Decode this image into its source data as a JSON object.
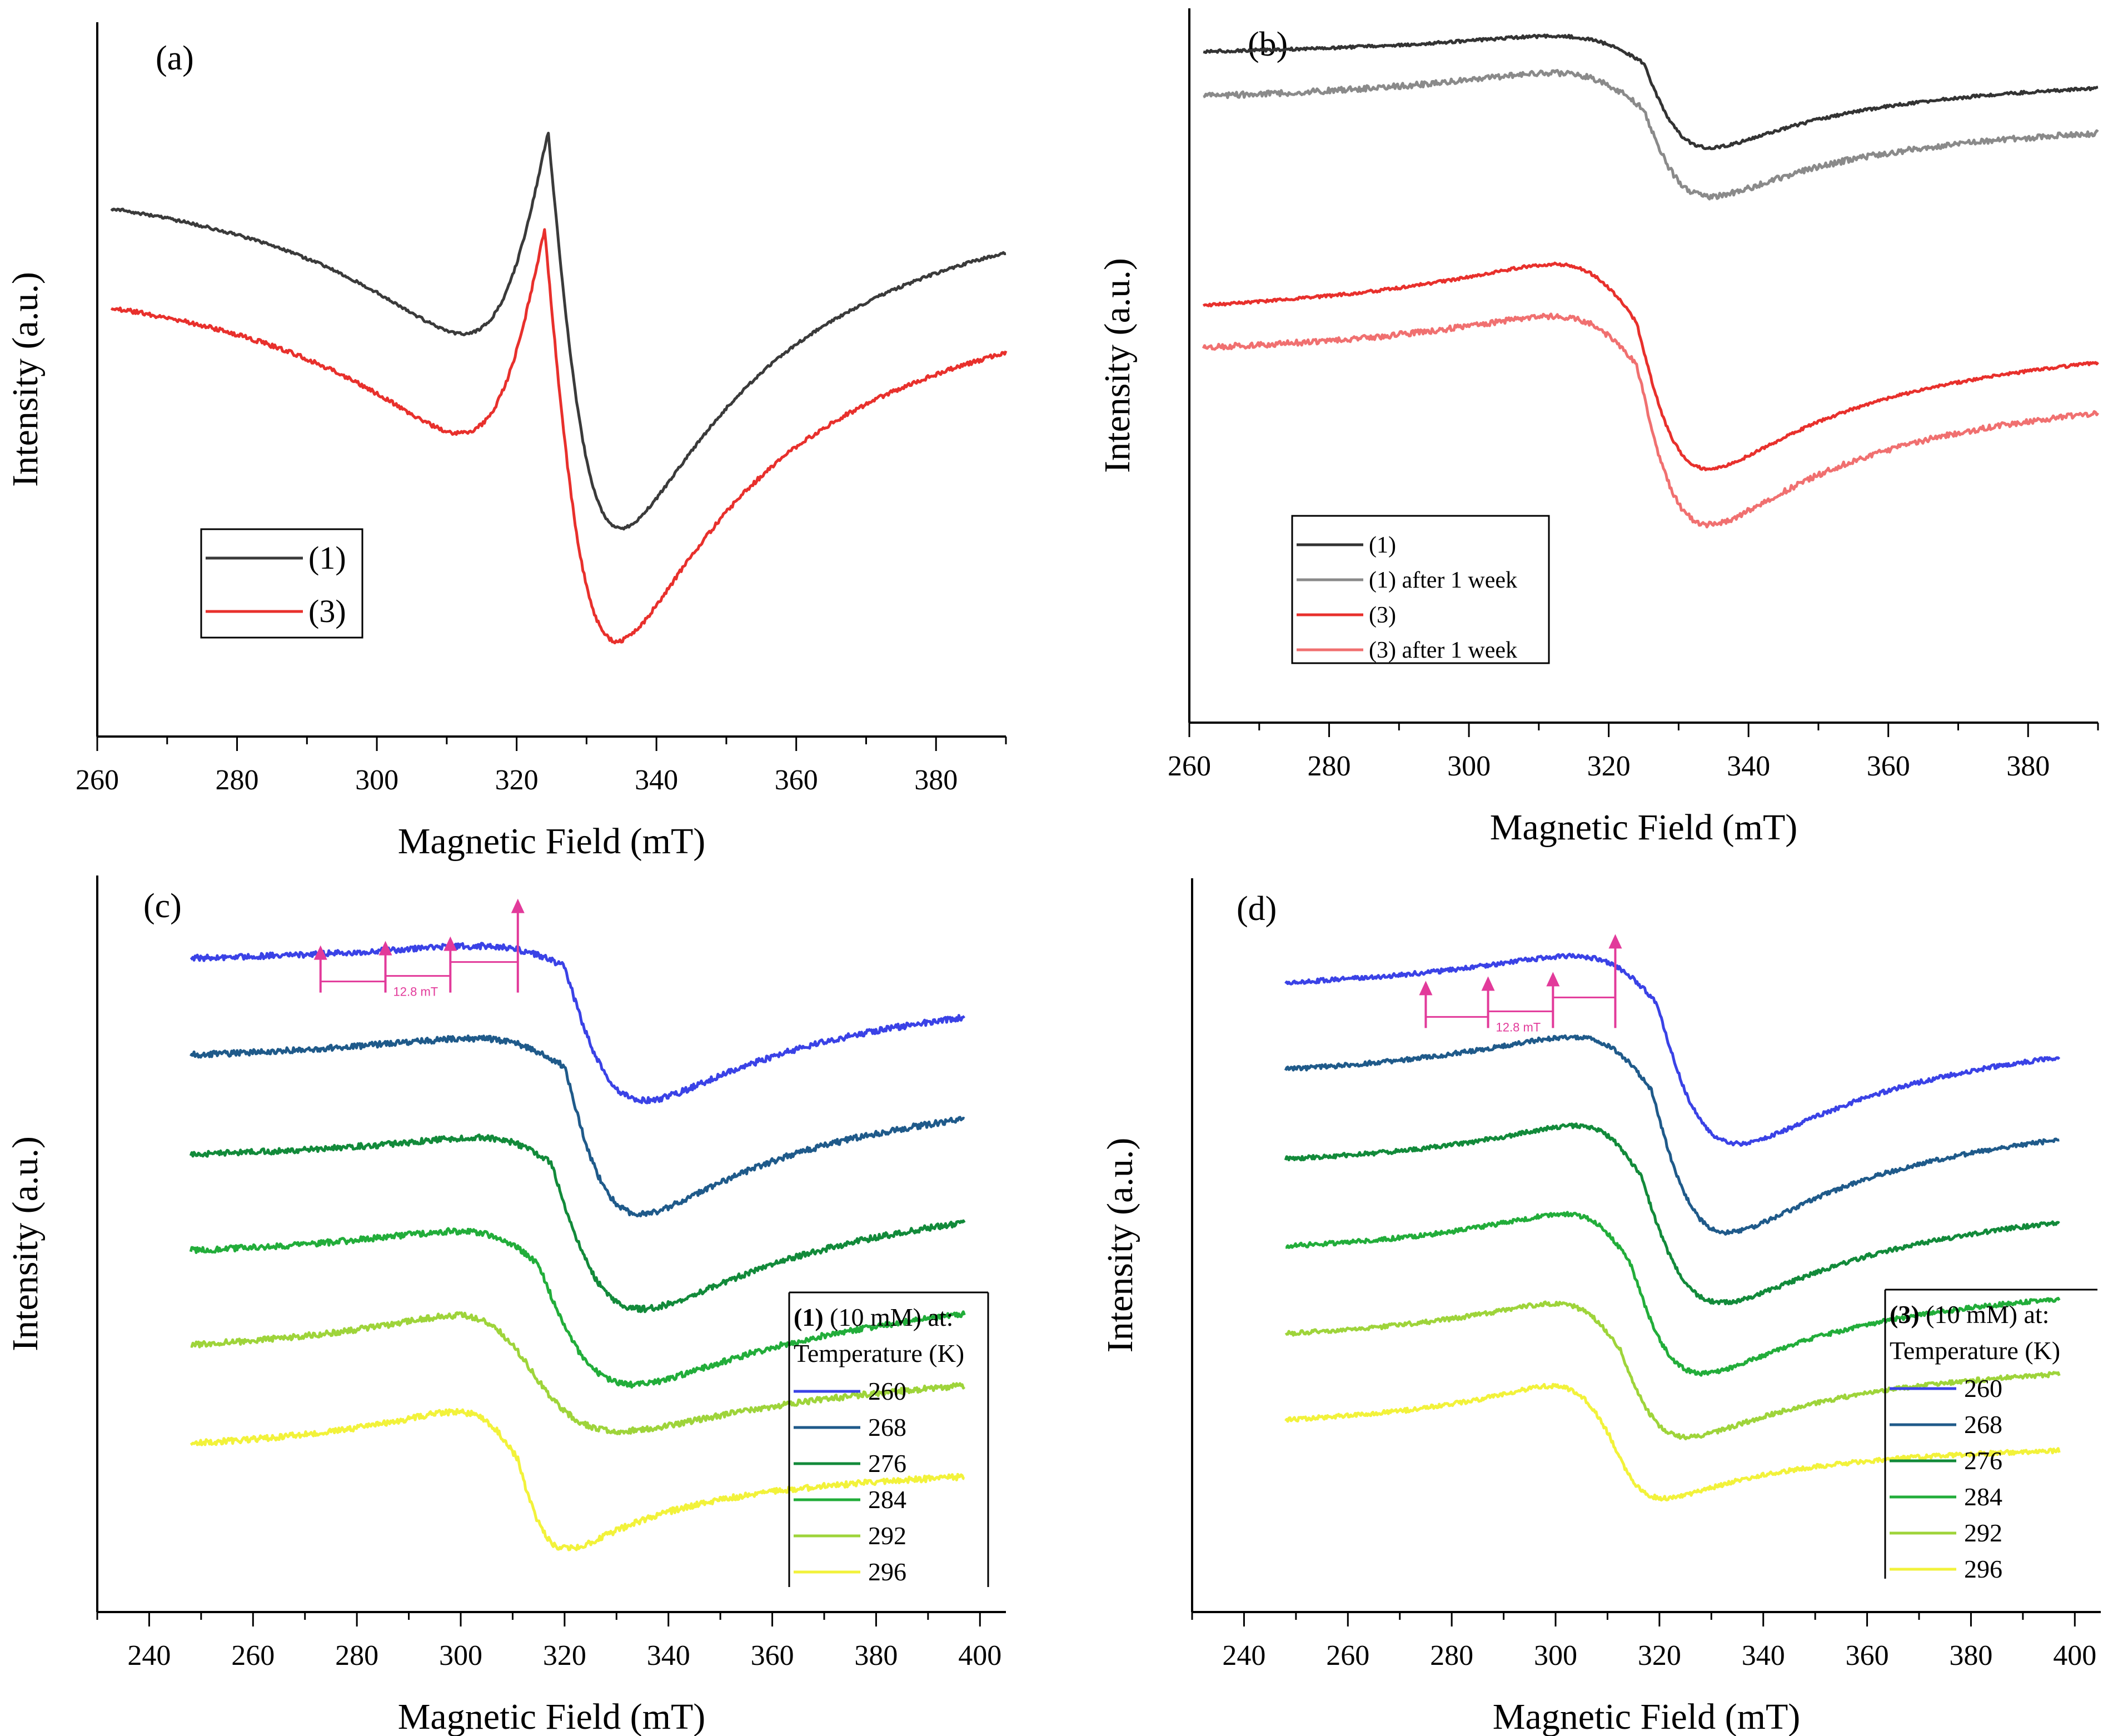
{
  "chart_data": [
    {
      "panel_label": "(a)",
      "type": "line",
      "xlabel": "Magnetic Field (mT)",
      "ylabel": "Intensity (a.u.)",
      "xlim": [
        260,
        390
      ],
      "xticks": [
        260,
        280,
        300,
        320,
        340,
        360,
        380
      ],
      "legend_position": "bottom-left",
      "series": [
        {
          "name": "(1)",
          "color": "#3a3a3a",
          "baseline_left": 0.155,
          "baseline_right": 0.15,
          "peak_height": 0.52,
          "trough_depth": 0.875,
          "x0": 324.5,
          "center_x": 317.5,
          "min_x": 330.5,
          "noise": 0.002
        },
        {
          "name": "(3)",
          "color": "#e8302c",
          "baseline_left": 0.292,
          "baseline_right": 0.285,
          "peak_height": 0.66,
          "trough_depth": 1.04,
          "x0": 324.0,
          "center_x": 317.0,
          "min_x": 330.0,
          "noise": 0.003
        }
      ]
    },
    {
      "panel_label": "(b)",
      "type": "line",
      "xlabel": "Magnetic Field (mT)",
      "ylabel": "Intensity (a.u.)",
      "xlim": [
        260,
        390
      ],
      "xticks": [
        260,
        280,
        300,
        320,
        340,
        360,
        380
      ],
      "legend_position": "bottom-left",
      "series": [
        {
          "name": "(1)",
          "color": "#333333",
          "baseline_left": 0.075,
          "baseline_right": 0.078,
          "peak_height": 0.028,
          "trough_depth": 0.23,
          "x0": 325.0,
          "center_x": 317.5,
          "min_x": 330.5,
          "noise": 0.002
        },
        {
          "name": "(1) after 1 week",
          "color": "#8a8a8a",
          "baseline_left": 0.143,
          "baseline_right": 0.14,
          "peak_height": 0.075,
          "trough_depth": 0.3,
          "x0": 325.0,
          "center_x": 317.5,
          "min_x": 330.5,
          "noise": 0.004
        },
        {
          "name": "(3)",
          "color": "#e8302c",
          "baseline_left": 0.447,
          "baseline_right": 0.433,
          "peak_height": 0.332,
          "trough_depth": 0.707,
          "x0": 324.0,
          "center_x": 317.0,
          "min_x": 330.0,
          "noise": 0.002
        },
        {
          "name": "(3) after 1 week",
          "color": "#f07070",
          "baseline_left": 0.5,
          "baseline_right": 0.498,
          "peak_height": 0.411,
          "trough_depth": 0.79,
          "x0": 324.0,
          "center_x": 317.0,
          "min_x": 330.0,
          "noise": 0.004
        }
      ]
    },
    {
      "panel_label": "(c)",
      "type": "line",
      "xlabel": "Magnetic Field (mT)",
      "ylabel": "Intensity (a.u.)",
      "xlim": [
        230,
        405
      ],
      "xticks": [
        240,
        260,
        280,
        300,
        320,
        340,
        360,
        380,
        400
      ],
      "legend_title_bold": "(1)",
      "legend_title_rest": " (10 mM) at:",
      "legend_subtitle": "Temperature (K)",
      "legend_position": "bottom-right",
      "annotation": "12.8 mT",
      "series": [
        {
          "name": "260",
          "color": "#3a42e6",
          "baseline_left": 0.125,
          "baseline_right": 0.122,
          "peak_height": 0.087,
          "trough_depth": 0.36,
          "x0": 320.0,
          "center_x": 310.0,
          "min_x": 329.0,
          "noise": 0.004
        },
        {
          "name": "268",
          "color": "#1f5a8a",
          "baseline_left": 0.262,
          "baseline_right": 0.257,
          "peak_height": 0.209,
          "trough_depth": 0.52,
          "x0": 320.0,
          "center_x": 309.5,
          "min_x": 328.5,
          "noise": 0.004
        },
        {
          "name": "276",
          "color": "#128a3a",
          "baseline_left": 0.393,
          "baseline_right": 0.389,
          "peak_height": 0.345,
          "trough_depth": 0.648,
          "x0": 317.5,
          "center_x": 309.0,
          "min_x": 327.5,
          "noise": 0.004
        },
        {
          "name": "284",
          "color": "#22ad3a",
          "baseline_left": 0.529,
          "baseline_right": 0.527,
          "peak_height": 0.469,
          "trough_depth": 0.74,
          "x0": 315.0,
          "center_x": 306.0,
          "min_x": 325.5,
          "noise": 0.004
        },
        {
          "name": "292",
          "color": "#9ed43a",
          "baseline_left": 0.66,
          "baseline_right": 0.65,
          "peak_height": 0.578,
          "trough_depth": 0.785,
          "x0": 312.0,
          "center_x": 304.5,
          "min_x": 323.0,
          "noise": 0.004
        },
        {
          "name": "296",
          "color": "#f2f23a",
          "baseline_left": 0.795,
          "baseline_right": 0.79,
          "peak_height": 0.708,
          "trough_depth": 0.95,
          "x0": 311.0,
          "center_x": 304.0,
          "min_x": 316.5,
          "noise": 0.004
        }
      ]
    },
    {
      "panel_label": "(d)",
      "type": "line",
      "xlabel": "Magnetic Field (mT)",
      "ylabel": "Intensity (a.u.)",
      "xlim": [
        230,
        405
      ],
      "xticks": [
        240,
        260,
        280,
        300,
        320,
        340,
        360,
        380,
        400
      ],
      "legend_title_bold": "(3)",
      "legend_title_rest": " (10 mM) at:",
      "legend_subtitle": "Temperature (K)",
      "legend_position": "bottom-right",
      "annotation": "12.8 mT",
      "series": [
        {
          "name": "260",
          "color": "#3a42e6",
          "baseline_left": 0.17,
          "baseline_right": 0.17,
          "peak_height": 0.087,
          "trough_depth": 0.419,
          "x0": 319.5,
          "center_x": 310.0,
          "min_x": 328.5,
          "noise": 0.003
        },
        {
          "name": "268",
          "color": "#1f5a8a",
          "baseline_left": 0.291,
          "baseline_right": 0.286,
          "peak_height": 0.194,
          "trough_depth": 0.541,
          "x0": 318.5,
          "center_x": 309.5,
          "min_x": 327.0,
          "noise": 0.003
        },
        {
          "name": "276",
          "color": "#128a3a",
          "baseline_left": 0.408,
          "baseline_right": 0.405,
          "peak_height": 0.316,
          "trough_depth": 0.63,
          "x0": 316.5,
          "center_x": 309.0,
          "min_x": 325.5,
          "noise": 0.003
        },
        {
          "name": "284",
          "color": "#22ad3a",
          "baseline_left": 0.527,
          "baseline_right": 0.525,
          "peak_height": 0.437,
          "trough_depth": 0.719,
          "x0": 314.5,
          "center_x": 307.0,
          "min_x": 322.5,
          "noise": 0.003
        },
        {
          "name": "292",
          "color": "#9ed43a",
          "baseline_left": 0.645,
          "baseline_right": 0.64,
          "peak_height": 0.56,
          "trough_depth": 0.797,
          "x0": 312.5,
          "center_x": 305.0,
          "min_x": 320.0,
          "noise": 0.003
        },
        {
          "name": "296",
          "color": "#f2f23a",
          "baseline_left": 0.762,
          "baseline_right": 0.76,
          "peak_height": 0.671,
          "trough_depth": 0.87,
          "x0": 310.5,
          "center_x": 304.0,
          "min_x": 316.5,
          "noise": 0.003
        }
      ]
    }
  ]
}
